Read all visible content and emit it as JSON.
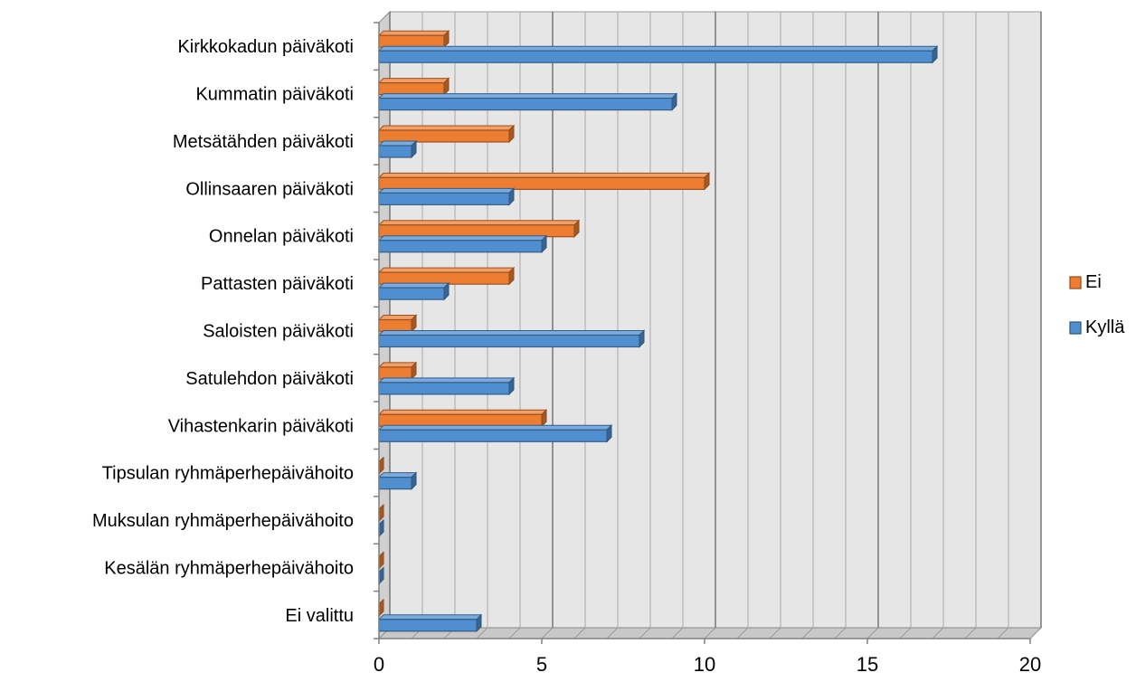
{
  "chart_data": {
    "type": "bar",
    "orientation": "horizontal",
    "three_d": true,
    "categories": [
      "Kirkkokadun päiväkoti",
      "Kummatin päiväkoti",
      "Metsätähden päiväkoti",
      "Ollinsaaren päiväkoti",
      "Onnelan päiväkoti",
      "Pattasten päiväkoti",
      "Saloisten päiväkoti",
      "Satulehdon päiväkoti",
      "Vihastenkarin päiväkoti",
      "Tipsulan ryhmäperhepäivähoito",
      "Muksulan ryhmäperhepäivähoito",
      "Kesälän ryhmäperhepäivähoito",
      "Ei valittu"
    ],
    "series": [
      {
        "name": "Ei",
        "color": "#ED7D31",
        "values": [
          2,
          2,
          4,
          10,
          6,
          4,
          1,
          1,
          5,
          0,
          0,
          0,
          0
        ]
      },
      {
        "name": "Kyllä",
        "color": "#4F8FD0",
        "values": [
          17,
          9,
          1,
          4,
          5,
          2,
          8,
          4,
          7,
          1,
          0,
          0,
          3
        ]
      }
    ],
    "xlim": [
      0,
      20
    ],
    "x_ticks": [
      "0",
      "5",
      "10",
      "15",
      "20"
    ],
    "grid": true,
    "legend_position": "right"
  }
}
